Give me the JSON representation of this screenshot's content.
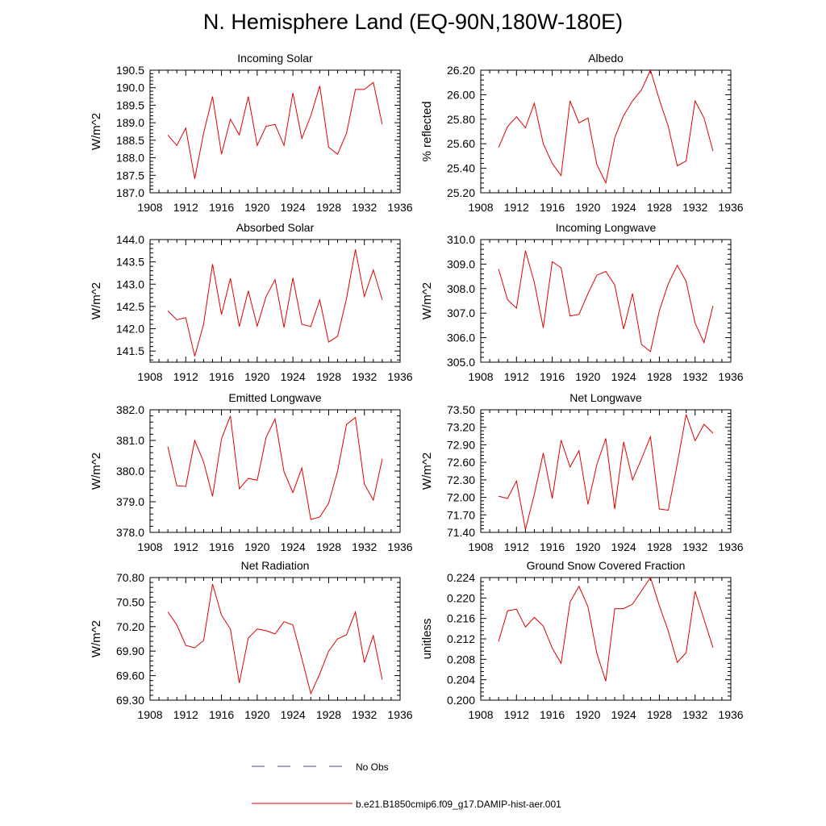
{
  "figure": {
    "title": "N. Hemisphere Land (EQ-90N,180W-180E)"
  },
  "legend": {
    "obs_label": "No Obs",
    "obs_color": "#4a4aa0",
    "model_label": "b.e21.B1850cmip6.f09_g17.DAMIP-hist-aer.001",
    "model_color": "#e00000"
  },
  "chart_data": [
    {
      "type": "line",
      "title": "Incoming Solar",
      "ylabel": "W/m^2",
      "xlabel": "",
      "xlim": [
        1908,
        1936
      ],
      "xticks": [
        1908,
        1912,
        1916,
        1920,
        1924,
        1928,
        1932,
        1936
      ],
      "ylim": [
        187.0,
        190.5
      ],
      "yticks": [
        "187.0",
        "187.5",
        "188.0",
        "188.5",
        "189.0",
        "189.5",
        "190.0",
        "190.5"
      ],
      "x": [
        1910,
        1911,
        1912,
        1913,
        1914,
        1915,
        1916,
        1917,
        1918,
        1919,
        1920,
        1921,
        1922,
        1923,
        1924,
        1925,
        1926,
        1927,
        1928,
        1929,
        1930,
        1931,
        1932,
        1933,
        1934
      ],
      "series": [
        {
          "values": [
            188.65,
            188.35,
            188.85,
            187.4,
            188.7,
            189.75,
            188.1,
            189.1,
            188.65,
            189.75,
            188.35,
            188.9,
            188.95,
            188.35,
            189.85,
            188.55,
            189.2,
            190.05,
            188.3,
            188.1,
            188.7,
            189.95,
            189.95,
            190.15,
            188.95
          ],
          "color": "#e00000"
        }
      ],
      "grid": false
    },
    {
      "type": "line",
      "title": "Albedo",
      "ylabel": "% reflected",
      "xlabel": "",
      "xlim": [
        1908,
        1936
      ],
      "xticks": [
        1908,
        1912,
        1916,
        1920,
        1924,
        1928,
        1932,
        1936
      ],
      "ylim": [
        25.2,
        26.2
      ],
      "yticks": [
        "25.20",
        "25.40",
        "25.60",
        "25.80",
        "26.00",
        "26.20"
      ],
      "x": [
        1910,
        1911,
        1912,
        1913,
        1914,
        1915,
        1916,
        1917,
        1918,
        1919,
        1920,
        1921,
        1922,
        1923,
        1924,
        1925,
        1926,
        1927,
        1928,
        1929,
        1930,
        1931,
        1932,
        1933,
        1934
      ],
      "series": [
        {
          "values": [
            25.57,
            25.74,
            25.82,
            25.73,
            25.93,
            25.6,
            25.44,
            25.34,
            25.95,
            25.77,
            25.81,
            25.43,
            25.28,
            25.65,
            25.83,
            25.95,
            26.04,
            26.2,
            25.96,
            25.74,
            25.42,
            25.46,
            25.95,
            25.81,
            25.54
          ],
          "color": "#e00000"
        }
      ],
      "grid": false
    },
    {
      "type": "line",
      "title": "Absorbed Solar",
      "ylabel": "W/m^2",
      "xlabel": "",
      "xlim": [
        1908,
        1936
      ],
      "xticks": [
        1908,
        1912,
        1916,
        1920,
        1924,
        1928,
        1932,
        1936
      ],
      "ylim": [
        141.25,
        144.0
      ],
      "yticks": [
        "141.5",
        "142.0",
        "142.5",
        "143.0",
        "143.5",
        "144.0"
      ],
      "x": [
        1910,
        1911,
        1912,
        1913,
        1914,
        1915,
        1916,
        1917,
        1918,
        1919,
        1920,
        1921,
        1922,
        1923,
        1924,
        1925,
        1926,
        1927,
        1928,
        1929,
        1930,
        1931,
        1932,
        1933,
        1934
      ],
      "series": [
        {
          "values": [
            142.4,
            142.2,
            142.25,
            141.38,
            142.1,
            143.45,
            142.32,
            143.13,
            142.05,
            142.85,
            142.06,
            142.72,
            143.1,
            142.03,
            143.14,
            142.1,
            142.05,
            142.65,
            141.7,
            141.83,
            142.68,
            143.78,
            142.72,
            143.32,
            142.65
          ],
          "color": "#e00000"
        }
      ],
      "grid": false
    },
    {
      "type": "line",
      "title": "Incoming Longwave",
      "ylabel": "W/m^2",
      "xlabel": "",
      "xlim": [
        1908,
        1936
      ],
      "xticks": [
        1908,
        1912,
        1916,
        1920,
        1924,
        1928,
        1932,
        1936
      ],
      "ylim": [
        305.0,
        310.0
      ],
      "yticks": [
        "305.0",
        "306.0",
        "307.0",
        "308.0",
        "309.0",
        "310.0"
      ],
      "x": [
        1910,
        1911,
        1912,
        1913,
        1914,
        1915,
        1916,
        1917,
        1918,
        1919,
        1920,
        1921,
        1922,
        1923,
        1924,
        1925,
        1926,
        1927,
        1928,
        1929,
        1930,
        1931,
        1932,
        1933,
        1934
      ],
      "series": [
        {
          "values": [
            308.8,
            307.55,
            307.2,
            309.55,
            308.25,
            306.4,
            309.1,
            308.85,
            306.88,
            306.95,
            307.8,
            308.55,
            308.7,
            308.15,
            306.35,
            307.8,
            305.72,
            305.43,
            307.1,
            308.2,
            308.95,
            308.3,
            306.6,
            305.8,
            307.3
          ],
          "color": "#e00000"
        }
      ],
      "grid": false
    },
    {
      "type": "line",
      "title": "Emitted Longwave",
      "ylabel": "W/m^2",
      "xlabel": "",
      "xlim": [
        1908,
        1936
      ],
      "xticks": [
        1908,
        1912,
        1916,
        1920,
        1924,
        1928,
        1932,
        1936
      ],
      "ylim": [
        378.0,
        382.0
      ],
      "yticks": [
        "378.0",
        "379.0",
        "380.0",
        "381.0",
        "382.0"
      ],
      "x": [
        1910,
        1911,
        1912,
        1913,
        1914,
        1915,
        1916,
        1917,
        1918,
        1919,
        1920,
        1921,
        1922,
        1923,
        1924,
        1925,
        1926,
        1927,
        1928,
        1929,
        1930,
        1931,
        1932,
        1933,
        1934
      ],
      "series": [
        {
          "values": [
            380.8,
            379.52,
            379.5,
            381.0,
            380.3,
            379.18,
            381.05,
            381.8,
            379.42,
            379.76,
            379.7,
            381.1,
            381.7,
            379.98,
            379.3,
            380.1,
            378.42,
            378.5,
            378.95,
            380.0,
            381.52,
            381.75,
            379.58,
            379.05,
            380.4
          ],
          "color": "#e00000"
        }
      ],
      "grid": false
    },
    {
      "type": "line",
      "title": "Net Longwave",
      "ylabel": "W/m^2",
      "xlabel": "",
      "xlim": [
        1908,
        1936
      ],
      "xticks": [
        1908,
        1912,
        1916,
        1920,
        1924,
        1928,
        1932,
        1936
      ],
      "ylim": [
        71.4,
        73.5
      ],
      "yticks": [
        "71.40",
        "71.70",
        "72.00",
        "72.30",
        "72.60",
        "72.90",
        "73.20",
        "73.50"
      ],
      "x": [
        1910,
        1911,
        1912,
        1913,
        1914,
        1915,
        1916,
        1917,
        1918,
        1919,
        1920,
        1921,
        1922,
        1923,
        1924,
        1925,
        1926,
        1927,
        1928,
        1929,
        1930,
        1931,
        1932,
        1933,
        1934
      ],
      "series": [
        {
          "values": [
            72.02,
            71.98,
            72.28,
            71.45,
            72.05,
            72.76,
            71.98,
            72.98,
            72.52,
            72.8,
            71.88,
            72.56,
            73.01,
            71.8,
            72.95,
            72.3,
            72.66,
            73.04,
            71.8,
            71.78,
            72.57,
            73.42,
            72.97,
            73.25,
            73.1
          ],
          "color": "#e00000"
        }
      ],
      "grid": false
    },
    {
      "type": "line",
      "title": "Net Radiation",
      "ylabel": "W/m^2",
      "xlabel": "",
      "xlim": [
        1908,
        1936
      ],
      "xticks": [
        1908,
        1912,
        1916,
        1920,
        1924,
        1928,
        1932,
        1936
      ],
      "ylim": [
        69.3,
        70.8
      ],
      "yticks": [
        "69.30",
        "69.60",
        "69.90",
        "70.20",
        "70.50",
        "70.80"
      ],
      "x": [
        1910,
        1911,
        1912,
        1913,
        1914,
        1915,
        1916,
        1917,
        1918,
        1919,
        1920,
        1921,
        1922,
        1923,
        1924,
        1925,
        1926,
        1927,
        1928,
        1929,
        1930,
        1931,
        1932,
        1933,
        1934
      ],
      "series": [
        {
          "values": [
            70.38,
            70.22,
            69.97,
            69.94,
            70.03,
            70.72,
            70.34,
            70.17,
            69.51,
            70.06,
            70.17,
            70.15,
            70.11,
            70.26,
            70.22,
            69.81,
            69.38,
            69.62,
            69.9,
            70.05,
            70.1,
            70.38,
            69.76,
            70.09,
            69.55
          ],
          "color": "#e00000"
        }
      ],
      "grid": false
    },
    {
      "type": "line",
      "title": "Ground Snow Covered Fraction",
      "ylabel": "unitless",
      "xlabel": "",
      "xlim": [
        1908,
        1936
      ],
      "xticks": [
        1908,
        1912,
        1916,
        1920,
        1924,
        1928,
        1932,
        1936
      ],
      "ylim": [
        0.2,
        0.224
      ],
      "yticks": [
        "0.200",
        "0.204",
        "0.208",
        "0.212",
        "0.216",
        "0.220",
        "0.224"
      ],
      "x": [
        1910,
        1911,
        1912,
        1913,
        1914,
        1915,
        1916,
        1917,
        1918,
        1919,
        1920,
        1921,
        1922,
        1923,
        1924,
        1925,
        1926,
        1927,
        1928,
        1929,
        1930,
        1931,
        1932,
        1933,
        1934
      ],
      "series": [
        {
          "values": [
            0.2115,
            0.2175,
            0.2178,
            0.2143,
            0.2162,
            0.2145,
            0.2102,
            0.2072,
            0.2192,
            0.2223,
            0.2183,
            0.2092,
            0.2037,
            0.2179,
            0.2179,
            0.2188,
            0.2214,
            0.224,
            0.2185,
            0.2135,
            0.2074,
            0.2093,
            0.2213,
            0.2158,
            0.2103
          ],
          "color": "#e00000"
        }
      ],
      "grid": false
    }
  ]
}
